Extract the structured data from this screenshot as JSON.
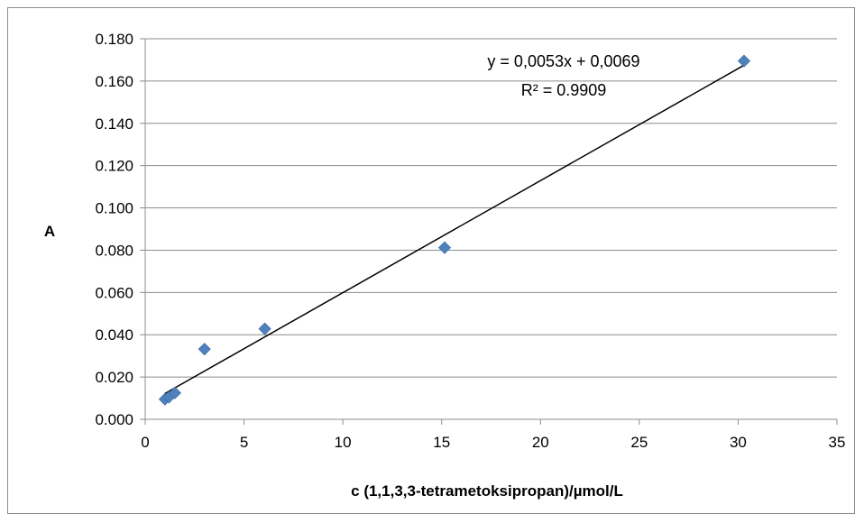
{
  "chart_data": {
    "type": "scatter",
    "xlabel": "c (1,1,3,3-tetrametoksipropan)/µmol/L",
    "ylabel": "A",
    "xlim": [
      0,
      35
    ],
    "ylim": [
      0,
      0.18
    ],
    "x_ticks": [
      0,
      5,
      10,
      15,
      20,
      25,
      30,
      35
    ],
    "x_tick_labels": [
      "0",
      "5",
      "10",
      "15",
      "20",
      "25",
      "30",
      "35"
    ],
    "y_ticks": [
      0,
      0.02,
      0.04,
      0.06,
      0.08,
      0.1,
      0.12,
      0.14,
      0.16,
      0.18
    ],
    "y_tick_labels": [
      "0.000",
      "0.020",
      "0.040",
      "0.060",
      "0.080",
      "0.100",
      "0.120",
      "0.140",
      "0.160",
      "0.180"
    ],
    "grid": true,
    "marker_color": "#4F81BD",
    "series": [
      {
        "x": [
          1.0,
          1.2,
          1.5,
          3.0,
          6.05,
          15.15,
          30.3
        ],
        "y": [
          0.0095,
          0.0105,
          0.0125,
          0.0332,
          0.0428,
          0.0812,
          0.1695
        ]
      }
    ],
    "trendline": {
      "slope": 0.0053,
      "intercept": 0.0069,
      "x_range": [
        1.0,
        30.3
      ],
      "color": "#000000",
      "equation": "y = 0,0053x + 0,0069",
      "r_squared": "R² = 0.9909"
    }
  }
}
